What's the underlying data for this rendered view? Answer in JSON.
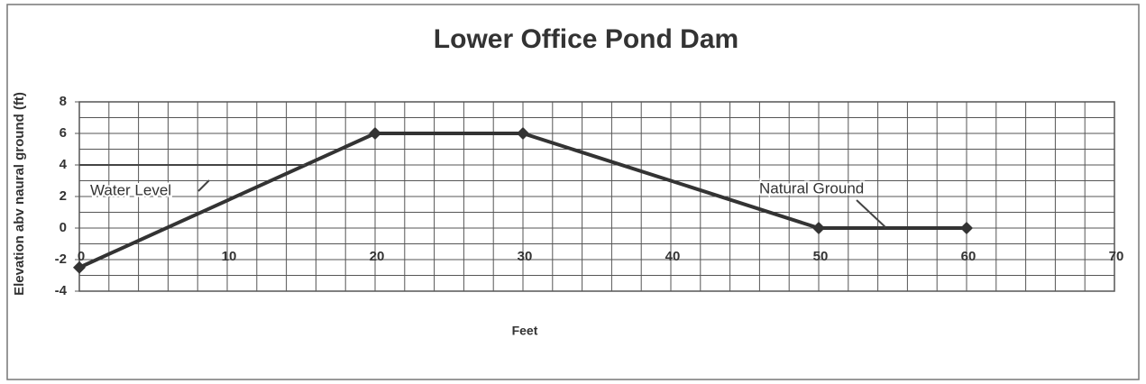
{
  "chart_data": {
    "type": "line",
    "title": "Lower Office Pond Dam",
    "x_label": "Feet",
    "y_label": "Elevation abv naural ground (ft)",
    "series": [
      {
        "color": "#333333",
        "x": [
          0,
          20,
          30,
          50,
          60
        ],
        "values": [
          -2.5,
          6,
          6,
          0,
          0
        ],
        "markers": true
      },
      {
        "color": "#444444",
        "x": [
          0,
          15.3
        ],
        "values": [
          4,
          4
        ],
        "markers": false
      }
    ],
    "annotations": [
      {
        "text": "Water Level"
      },
      {
        "text": "Natural Ground"
      }
    ],
    "xlim": [
      0,
      70
    ],
    "xticks": [
      0,
      10,
      20,
      30,
      40,
      50,
      60,
      70
    ],
    "ylim": [
      -4,
      8
    ],
    "yticks": [
      -4,
      -2,
      0,
      2,
      4,
      6,
      8
    ],
    "grid": true,
    "minor_grid": {
      "x": 2,
      "y": 1
    }
  }
}
